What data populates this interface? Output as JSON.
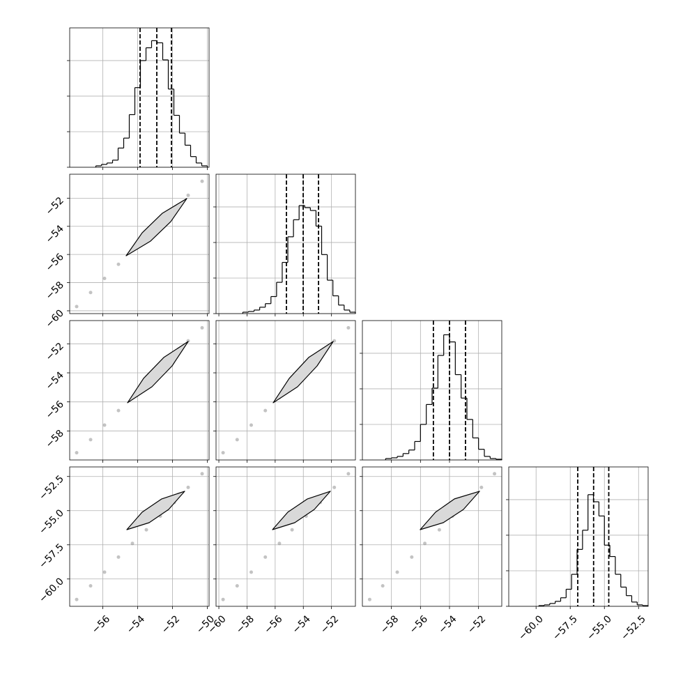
{
  "chart_data": {
    "type": "corner",
    "grid": true,
    "color": "#000000",
    "sample_color": "#888888",
    "contour_fill": "#d9d9d9",
    "hist_ylim": [
      0,
      1960
    ],
    "hist_yticks": [
      0,
      500,
      1000,
      1500
    ],
    "params": [
      {
        "lim": [
          -57.9,
          -49.9
        ],
        "ticks": [
          {
            "value": -56,
            "label": "−56"
          },
          {
            "value": -54,
            "label": "−54"
          },
          {
            "value": -52,
            "label": "−52"
          },
          {
            "value": -50,
            "label": "−50"
          }
        ],
        "bins": [
          -56.4,
          -56.08,
          -55.76,
          -55.44,
          -55.12,
          -54.8,
          -54.48,
          -54.16,
          -53.84,
          -53.52,
          -53.2,
          -52.88,
          -52.56,
          -52.24,
          -51.92,
          -51.6,
          -51.28,
          -50.96,
          -50.64,
          -50.32,
          -50.0
        ],
        "counts": [
          20,
          40,
          60,
          100,
          270,
          410,
          740,
          1120,
          1500,
          1680,
          1780,
          1750,
          1510,
          1100,
          730,
          480,
          310,
          150,
          60,
          20
        ],
        "quantiles": [
          -53.86,
          -52.9,
          -52.06
        ]
      },
      {
        "lim": [
          -60.2,
          -50.3
        ],
        "ticks": [
          {
            "value": -60,
            "label": "−60"
          },
          {
            "value": -58,
            "label": "−58"
          },
          {
            "value": -56,
            "label": "−56"
          },
          {
            "value": -54,
            "label": "−54"
          },
          {
            "value": -52,
            "label": "−52"
          }
        ],
        "bins": [
          -58.3,
          -57.9,
          -57.5,
          -57.1,
          -56.7,
          -56.3,
          -55.9,
          -55.5,
          -55.1,
          -54.7,
          -54.3,
          -53.9,
          -53.5,
          -53.1,
          -52.7,
          -52.3,
          -51.9,
          -51.5,
          -51.1,
          -50.7,
          -50.3
        ],
        "counts": [
          20,
          30,
          50,
          90,
          140,
          240,
          440,
          720,
          1080,
          1320,
          1520,
          1490,
          1450,
          1230,
          830,
          470,
          250,
          120,
          50,
          20
        ],
        "quantiles": [
          -55.2,
          -54.01,
          -52.92
        ]
      },
      {
        "lim": [
          -60.0,
          -50.4
        ],
        "ticks": [
          {
            "value": -58,
            "label": "−58"
          },
          {
            "value": -56,
            "label": "−56"
          },
          {
            "value": -54,
            "label": "−54"
          },
          {
            "value": -52,
            "label": "−52"
          }
        ],
        "bins": [
          -58.4,
          -58.0,
          -57.6,
          -57.2,
          -56.8,
          -56.4,
          -56.0,
          -55.6,
          -55.2,
          -54.8,
          -54.4,
          -54.0,
          -53.6,
          -53.2,
          -52.8,
          -52.4,
          -52.0,
          -51.6,
          -51.2,
          -50.8,
          -50.4
        ],
        "counts": [
          20,
          30,
          50,
          90,
          140,
          260,
          500,
          780,
          1010,
          1470,
          1760,
          1660,
          1200,
          870,
          570,
          310,
          150,
          50,
          20,
          10
        ],
        "quantiles": [
          -55.11,
          -54.0,
          -52.9
        ]
      },
      {
        "lim": [
          -62.0,
          -51.8
        ],
        "ticks": [
          {
            "value": -60,
            "label": "−60.0"
          },
          {
            "value": -57.5,
            "label": "−57.5"
          },
          {
            "value": -55,
            "label": "−55.0"
          },
          {
            "value": -52.5,
            "label": "−52.5"
          }
        ],
        "bins": [
          -59.8,
          -59.4,
          -59.0,
          -58.6,
          -58.2,
          -57.8,
          -57.4,
          -57.0,
          -56.6,
          -56.2,
          -55.8,
          -55.4,
          -55.0,
          -54.6,
          -54.2,
          -53.8,
          -53.4,
          -53.0,
          -52.6,
          -52.2,
          -51.8
        ],
        "counts": [
          10,
          20,
          40,
          70,
          120,
          240,
          450,
          800,
          1070,
          1570,
          1470,
          1270,
          860,
          700,
          450,
          270,
          150,
          60,
          20,
          10
        ],
        "quantiles": [
          -56.95,
          -55.79,
          -54.68
        ]
      }
    ],
    "samples": [
      [
        -57.5,
        -56.7,
        -55.9,
        -55.1,
        -54.3,
        -53.5,
        -52.7,
        -51.9,
        -51.1,
        -50.3
      ],
      [
        -59.7,
        -58.7,
        -57.7,
        -56.7,
        -55.7,
        -54.8,
        -53.8,
        -52.8,
        -51.8,
        -50.8
      ],
      [
        -59.5,
        -58.6,
        -57.6,
        -56.6,
        -55.7,
        -54.7,
        -53.8,
        -52.8,
        -51.8,
        -50.9
      ],
      [
        -61.5,
        -60.5,
        -59.5,
        -58.4,
        -57.4,
        -56.4,
        -55.4,
        -54.4,
        -53.3,
        -52.3
      ]
    ],
    "contours": [
      [
        {
          "x": [
            -54.66,
            -53.74,
            -52.58,
            -51.18,
            -52.1,
            -53.26
          ],
          "y": [
            -56.09,
            -54.46,
            -53.07,
            -52.03,
            -53.67,
            -55.05
          ]
        }
      ],
      [
        {
          "x": [
            -54.58,
            -53.66,
            -52.5,
            -51.1,
            -52.02,
            -53.18
          ],
          "y": [
            -56.06,
            -54.38,
            -52.94,
            -51.84,
            -53.52,
            -54.96
          ]
        },
        {
          "x": [
            -56.14,
            -55.0,
            -53.62,
            -51.88,
            -53.02,
            -54.41
          ],
          "y": [
            -56.06,
            -54.38,
            -52.94,
            -51.84,
            -53.52,
            -54.96
          ]
        }
      ],
      [
        {
          "x": [
            -54.62,
            -53.74,
            -52.62,
            -51.3,
            -52.22,
            -53.34
          ],
          "y": [
            -56.39,
            -55.11,
            -54.14,
            -53.58,
            -54.91,
            -55.88
          ]
        },
        {
          "x": [
            -56.19,
            -55.1,
            -53.71,
            -52.08,
            -53.22,
            -54.61
          ],
          "y": [
            -56.39,
            -55.11,
            -54.14,
            -53.58,
            -54.91,
            -55.88
          ]
        },
        {
          "x": [
            -56.02,
            -54.96,
            -53.66,
            -51.93,
            -53.04,
            -54.43
          ],
          "y": [
            -56.39,
            -55.11,
            -54.14,
            -53.58,
            -54.91,
            -55.88
          ]
        }
      ]
    ]
  }
}
